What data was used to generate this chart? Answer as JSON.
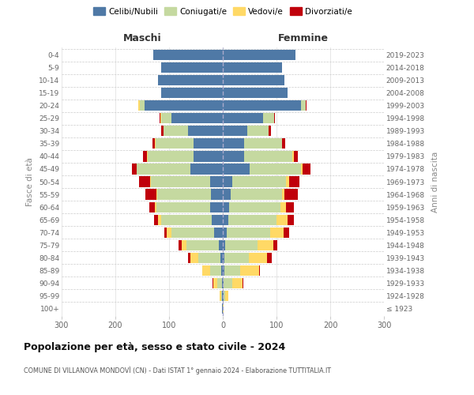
{
  "age_groups": [
    "100+",
    "95-99",
    "90-94",
    "85-89",
    "80-84",
    "75-79",
    "70-74",
    "65-69",
    "60-64",
    "55-59",
    "50-54",
    "45-49",
    "40-44",
    "35-39",
    "30-34",
    "25-29",
    "20-24",
    "15-19",
    "10-14",
    "5-9",
    "0-4"
  ],
  "birth_years": [
    "≤ 1923",
    "1924-1928",
    "1929-1933",
    "1934-1938",
    "1939-1943",
    "1944-1948",
    "1949-1953",
    "1954-1958",
    "1959-1963",
    "1964-1968",
    "1969-1973",
    "1974-1978",
    "1979-1983",
    "1984-1988",
    "1989-1993",
    "1994-1998",
    "1999-2003",
    "2004-2008",
    "2009-2013",
    "2014-2018",
    "2019-2023"
  ],
  "colors": {
    "celibi": "#4f79a6",
    "coniugati": "#c5d9a0",
    "vedovi": "#ffd966",
    "divorziati": "#c0000b"
  },
  "maschi": {
    "celibi": [
      1,
      1,
      2,
      3,
      5,
      7,
      16,
      20,
      24,
      22,
      24,
      60,
      55,
      55,
      65,
      95,
      145,
      115,
      120,
      115,
      130
    ],
    "coniugati": [
      0,
      2,
      8,
      20,
      40,
      60,
      80,
      95,
      100,
      100,
      110,
      100,
      85,
      70,
      45,
      20,
      10,
      0,
      0,
      0,
      0
    ],
    "vedovi": [
      0,
      3,
      8,
      15,
      15,
      10,
      8,
      5,
      3,
      2,
      2,
      1,
      1,
      1,
      1,
      1,
      2,
      0,
      0,
      0,
      0
    ],
    "divorziati": [
      0,
      0,
      1,
      0,
      5,
      5,
      5,
      8,
      10,
      20,
      20,
      8,
      8,
      5,
      3,
      2,
      0,
      0,
      0,
      0,
      0
    ]
  },
  "femmine": {
    "nubili": [
      0,
      1,
      2,
      3,
      3,
      4,
      8,
      10,
      12,
      15,
      18,
      50,
      40,
      40,
      45,
      75,
      145,
      120,
      115,
      110,
      135
    ],
    "coniugate": [
      0,
      4,
      15,
      30,
      45,
      60,
      80,
      90,
      95,
      95,
      100,
      95,
      90,
      70,
      40,
      20,
      10,
      0,
      0,
      0,
      0
    ],
    "vedove": [
      1,
      5,
      20,
      35,
      35,
      30,
      25,
      20,
      10,
      5,
      5,
      3,
      2,
      1,
      1,
      0,
      0,
      0,
      0,
      0,
      0
    ],
    "divorziate": [
      0,
      0,
      1,
      1,
      8,
      8,
      10,
      12,
      15,
      25,
      20,
      15,
      8,
      5,
      3,
      2,
      1,
      0,
      0,
      0,
      0
    ]
  },
  "xlim": 300,
  "xlabel_left": "Maschi",
  "xlabel_right": "Femmine",
  "ylabel": "Fasce di età",
  "ylabel_right": "Anni di nascita",
  "title": "Popolazione per età, sesso e stato civile - 2024",
  "subtitle": "COMUNE DI VILLANOVA MONDOVÌ (CN) - Dati ISTAT 1° gennaio 2024 - Elaborazione TUTTITALIA.IT",
  "legend_labels": [
    "Celibi/Nubili",
    "Coniugati/e",
    "Vedovi/e",
    "Divorziati/e"
  ]
}
